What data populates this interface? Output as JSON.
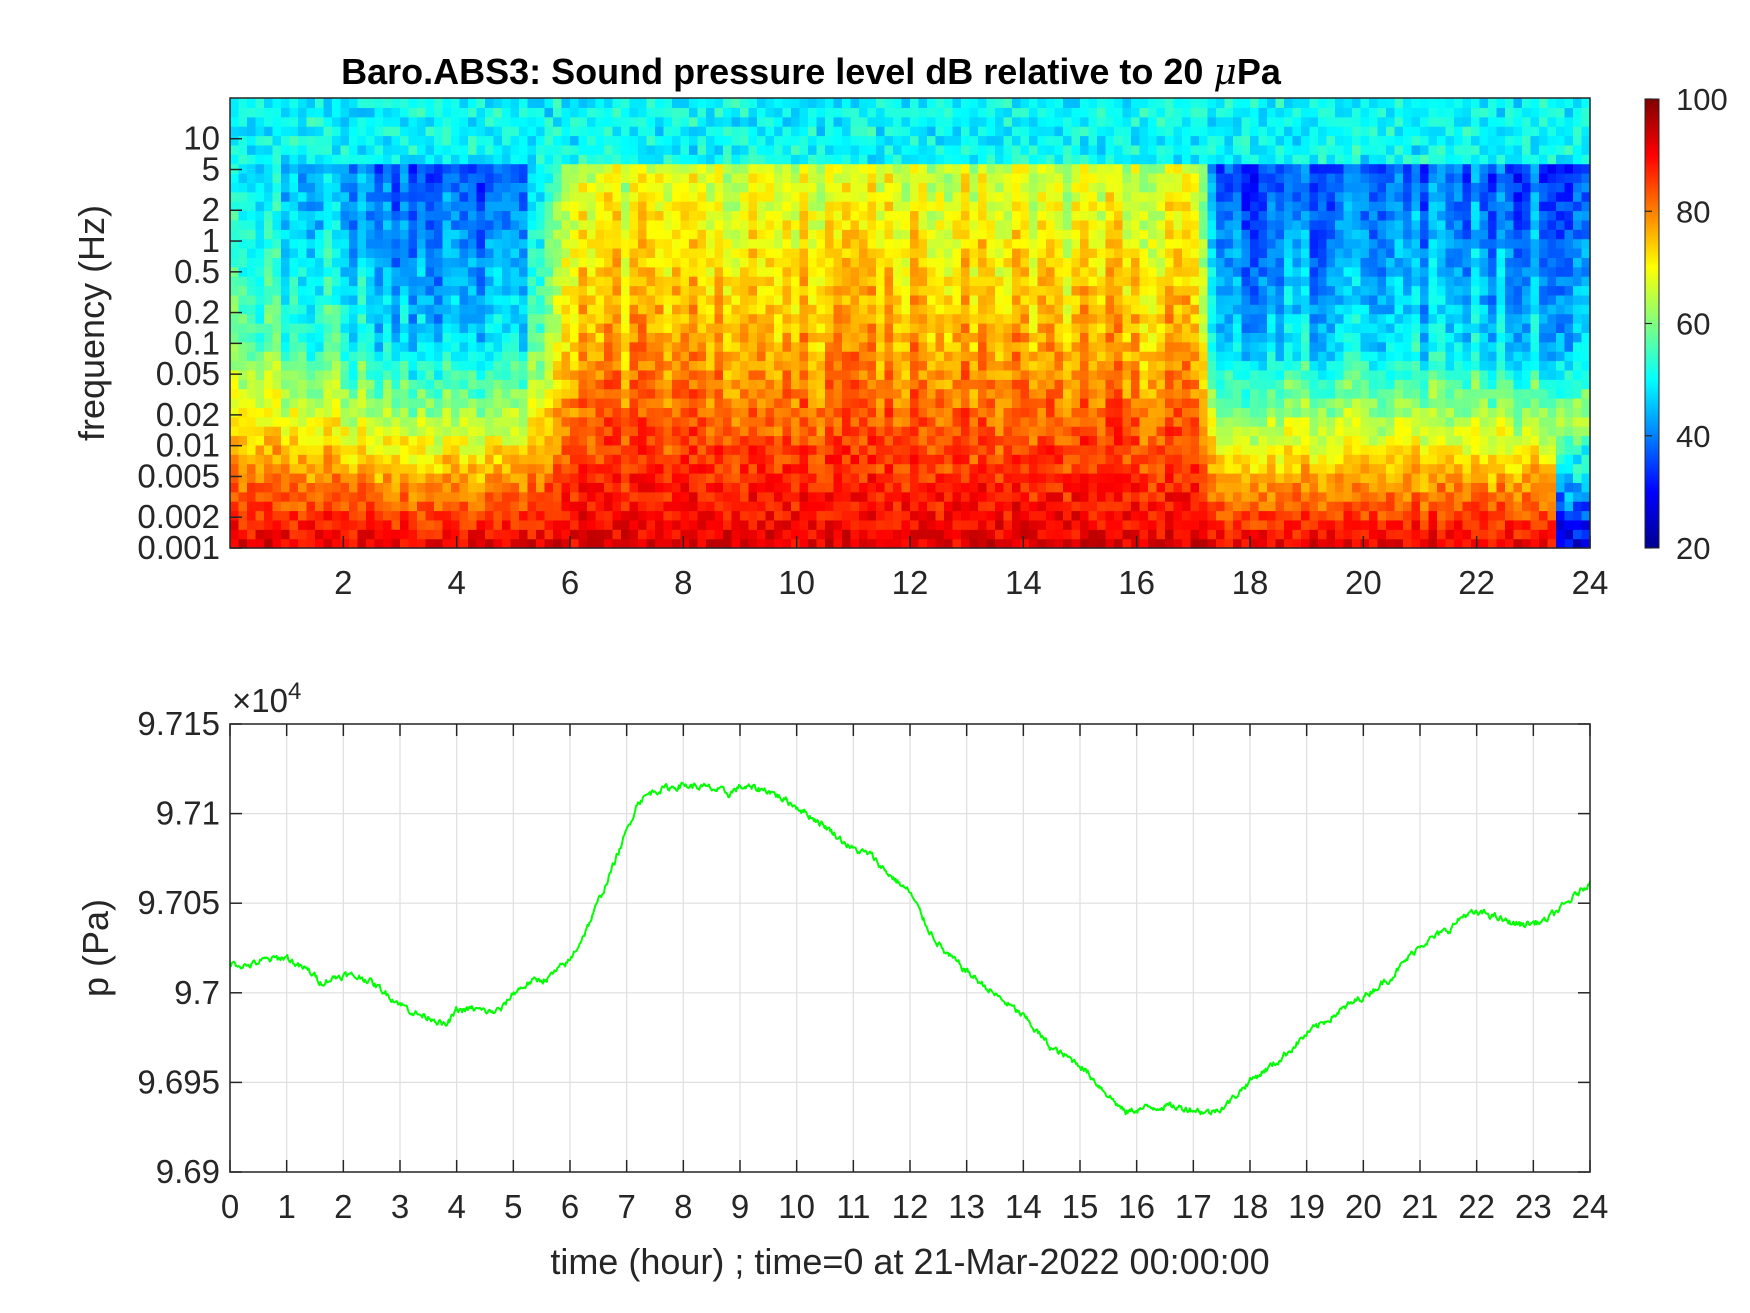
{
  "chart_data": [
    {
      "type": "heatmap",
      "title_prefix": "Baro.ABS3: Sound pressure level dB relative to 20 ",
      "title_mu": "μ",
      "title_suffix": "Pa",
      "xlabel": "",
      "ylabel": "frequency (Hz)",
      "xlim": [
        0,
        24
      ],
      "x_ticks": [
        2,
        4,
        6,
        8,
        10,
        12,
        14,
        16,
        18,
        20,
        22,
        24
      ],
      "y_scale": "log",
      "ylim": [
        0.001,
        25
      ],
      "y_ticks": [
        0.001,
        0.002,
        0.005,
        0.01,
        0.02,
        0.05,
        0.1,
        0.2,
        0.5,
        1,
        2,
        5,
        10
      ],
      "y_tick_labels": [
        "0.001",
        "0.002",
        "0.005",
        "0.01",
        "0.02",
        "0.05",
        "0.1",
        "0.2",
        "0.5",
        "1",
        "2",
        "5",
        "10"
      ],
      "colormap": "jet",
      "clim": [
        20,
        100
      ],
      "colorbar_ticks": [
        20,
        40,
        60,
        80,
        100
      ],
      "level_profile_hours": [
        0,
        2,
        3,
        4,
        5,
        6,
        8,
        10,
        12,
        14,
        16,
        17,
        17.5,
        18,
        20,
        22,
        23,
        24
      ],
      "level_profile_active": [
        0.45,
        0.3,
        0.1,
        0.15,
        0.1,
        0.85,
        0.95,
        0.92,
        0.95,
        0.92,
        0.9,
        0.85,
        0.1,
        0.05,
        0.18,
        0.15,
        0.1,
        0.05
      ]
    },
    {
      "type": "line",
      "title": "",
      "xlabel": "time (hour) ; time=0 at 21-Mar-2022 00:00:00",
      "ylabel": "p (Pa)",
      "exponent_label": "×10",
      "exponent_power": "4",
      "xlim": [
        0,
        24
      ],
      "ylim": [
        96900,
        97150
      ],
      "x_ticks": [
        0,
        1,
        2,
        3,
        4,
        5,
        6,
        7,
        8,
        9,
        10,
        11,
        12,
        13,
        14,
        15,
        16,
        17,
        18,
        19,
        20,
        21,
        22,
        23,
        24
      ],
      "y_ticks": [
        96900,
        96950,
        97000,
        97050,
        97100,
        97150
      ],
      "y_tick_labels": [
        "9.69",
        "9.695",
        "9.7",
        "9.705",
        "9.71",
        "9.715"
      ],
      "grid": true,
      "line_color": "#00ff00",
      "series": [
        {
          "x": [
            0,
            0.3,
            0.6,
            1.0,
            1.2,
            1.4,
            1.6,
            2.0,
            2.4,
            2.7,
            3.0,
            3.3,
            3.6,
            3.8,
            4.0,
            4.3,
            4.6,
            4.8,
            5.0,
            5.3,
            5.6,
            6.0,
            6.3,
            6.6,
            7.0,
            7.2,
            7.5,
            8.0,
            8.5,
            8.8,
            9.0,
            9.5,
            10.0,
            10.5,
            11.0,
            11.3,
            11.6,
            12.0,
            12.3,
            12.6,
            13.0,
            13.5,
            14.0,
            14.5,
            15.0,
            15.5,
            15.8,
            16.0,
            16.5,
            17.0,
            17.3,
            17.6,
            18.0,
            18.5,
            19.0,
            19.5,
            20.0,
            20.5,
            21.0,
            21.5,
            21.8,
            22.2,
            22.5,
            22.8,
            23.2,
            23.6,
            24.0
          ],
          "y": [
            97017,
            97015,
            97018,
            97020,
            97015,
            97012,
            97006,
            97010,
            97008,
            97001,
            96994,
            96988,
            96986,
            96981,
            96990,
            96991,
            96989,
            96991,
            97000,
            97006,
            97008,
            97018,
            97036,
            97058,
            97090,
            97107,
            97113,
            97116,
            97114,
            97111,
            97115,
            97113,
            97104,
            97093,
            97080,
            97077,
            97067,
            97056,
            97037,
            97023,
            97012,
            96999,
            96987,
            96969,
            96960,
            96943,
            96933,
            96935,
            96937,
            96935,
            96933,
            96938,
            96951,
            96962,
            96977,
            96988,
            96998,
            97009,
            97027,
            97035,
            97044,
            97044,
            97040,
            97038,
            97040,
            97050,
            97062
          ]
        }
      ]
    }
  ]
}
